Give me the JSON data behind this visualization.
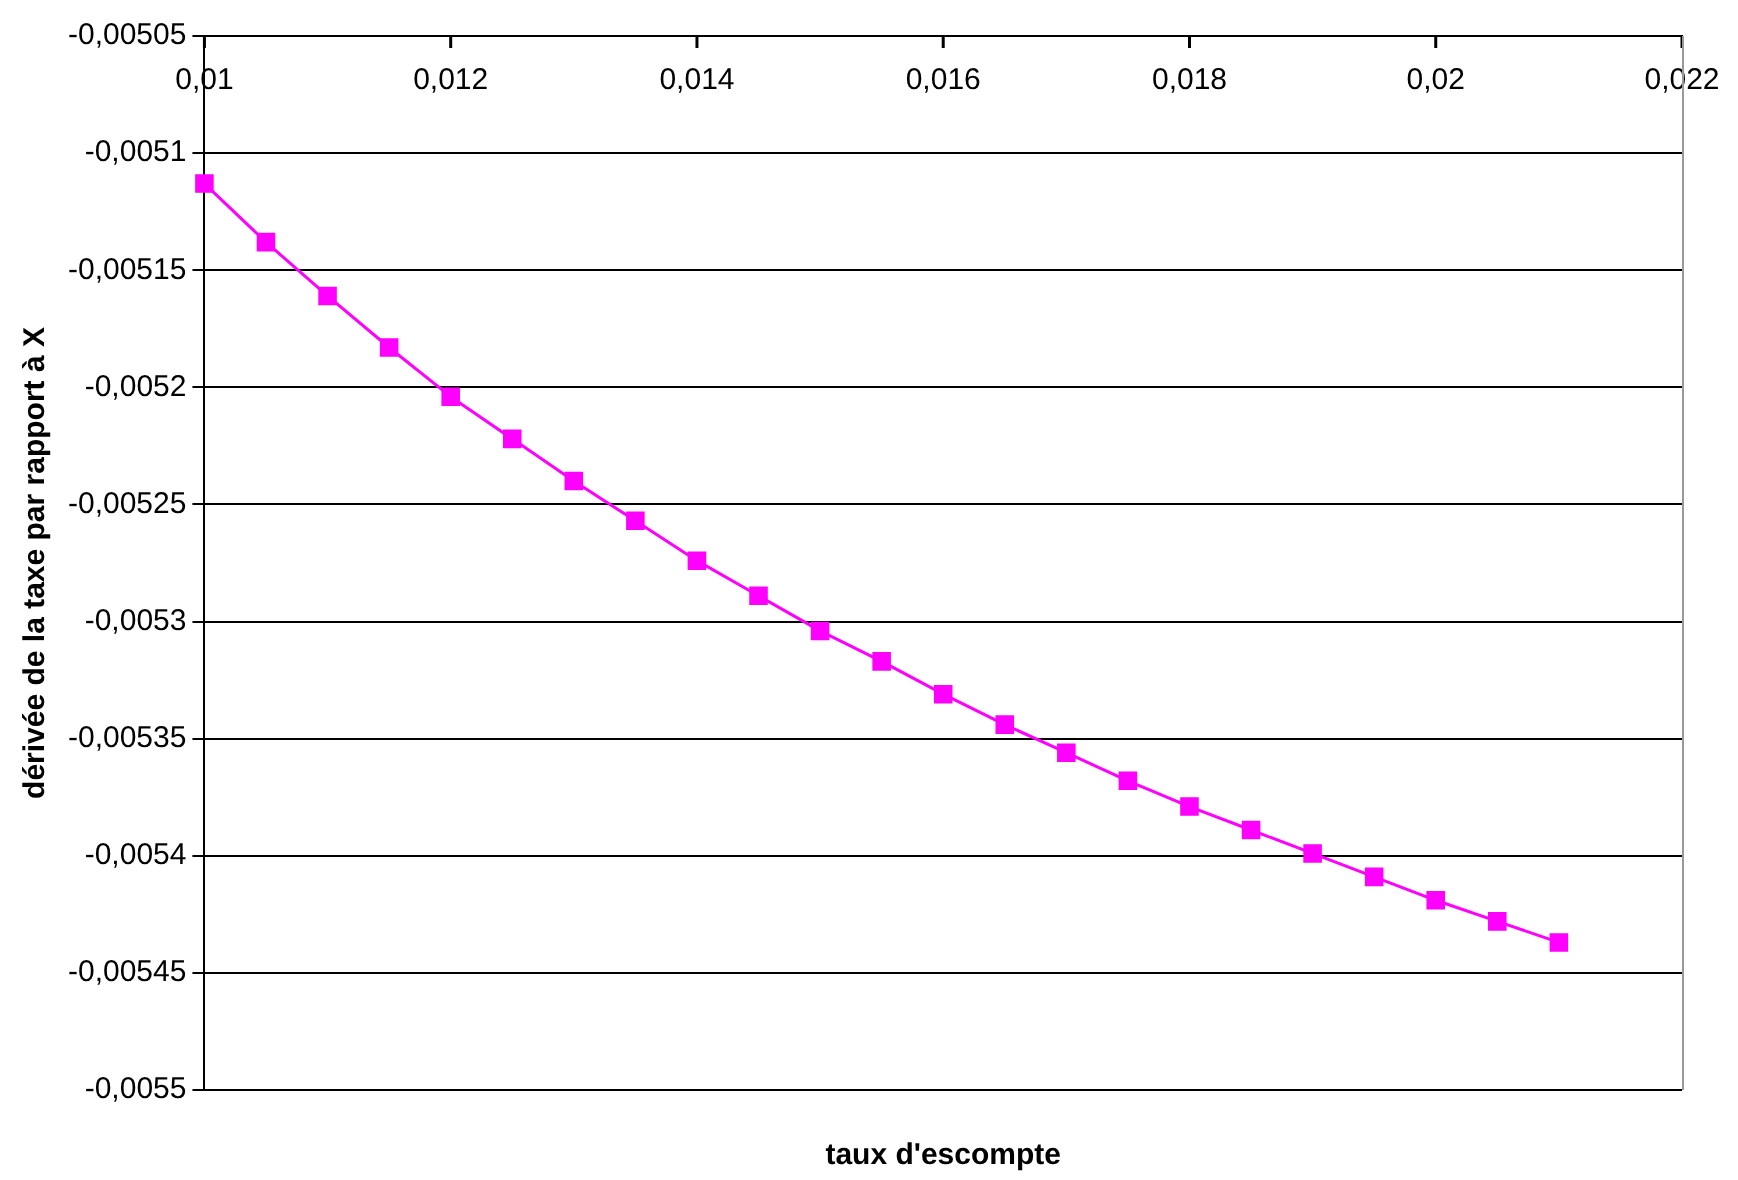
{
  "chart_data": {
    "type": "line",
    "xlabel": "taux d'escompte",
    "ylabel": "dérivée de la taxe par rapport à X",
    "x": [
      0.01,
      0.0105,
      0.011,
      0.0115,
      0.012,
      0.0125,
      0.013,
      0.0135,
      0.014,
      0.0145,
      0.015,
      0.0155,
      0.016,
      0.0165,
      0.017,
      0.0175,
      0.018,
      0.0185,
      0.019,
      0.0195,
      0.02,
      0.0205,
      0.021
    ],
    "series": [
      {
        "color": "#ff00ff",
        "values": [
          -0.005113,
          -0.005138,
          -0.005161,
          -0.005183,
          -0.005204,
          -0.005222,
          -0.00524,
          -0.005257,
          -0.005274,
          -0.005289,
          -0.005304,
          -0.005317,
          -0.005331,
          -0.005344,
          -0.005356,
          -0.005368,
          -0.005379,
          -0.005389,
          -0.005399,
          -0.005409,
          -0.005419,
          -0.005428,
          -0.005437
        ]
      }
    ],
    "xlim": [
      0.01,
      0.022
    ],
    "xticks": [
      {
        "value": 0.01,
        "label": "0,01"
      },
      {
        "value": 0.012,
        "label": "0,012"
      },
      {
        "value": 0.014,
        "label": "0,014"
      },
      {
        "value": 0.016,
        "label": "0,016"
      },
      {
        "value": 0.018,
        "label": "0,018"
      },
      {
        "value": 0.02,
        "label": "0,02"
      },
      {
        "value": 0.022,
        "label": "0,022"
      }
    ],
    "ylim": [
      -0.0055,
      -0.00505
    ],
    "yticks": [
      {
        "value": -0.0055,
        "label": "-0,0055"
      },
      {
        "value": -0.00545,
        "label": "-0,00545"
      },
      {
        "value": -0.0054,
        "label": "-0,0054"
      },
      {
        "value": -0.00535,
        "label": "-0,00535"
      },
      {
        "value": -0.0053,
        "label": "-0,0053"
      },
      {
        "value": -0.00525,
        "label": "-0,00525"
      },
      {
        "value": -0.0052,
        "label": "-0,0052"
      },
      {
        "value": -0.00515,
        "label": "-0,00515"
      },
      {
        "value": -0.0051,
        "label": "-0,0051"
      },
      {
        "value": -0.00505,
        "label": "-0,00505"
      }
    ],
    "grid": "y",
    "legend": false,
    "marker": "square",
    "line_style": "solid"
  }
}
